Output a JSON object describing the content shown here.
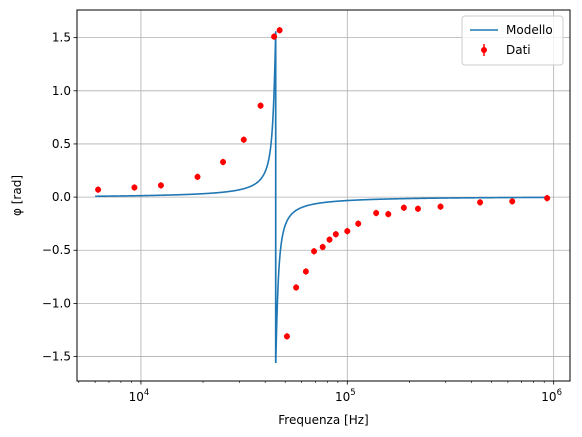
{
  "chart_data": {
    "type": "scatter",
    "xlabel": "Frequenza [Hz]",
    "ylabel": "φ [rad]",
    "xscale": "log",
    "xlim": [
      4900,
      1200000
    ],
    "ylim": [
      -1.73,
      1.76
    ],
    "grid": true,
    "legend_placement": "top-right",
    "x_ticks": [
      {
        "value": 10000,
        "base": "10",
        "exp": "4"
      },
      {
        "value": 100000,
        "base": "10",
        "exp": "5"
      },
      {
        "value": 1000000,
        "base": "10",
        "exp": "6"
      }
    ],
    "y_ticks": [
      {
        "value": 1.5,
        "label": "1.5"
      },
      {
        "value": 1.0,
        "label": "1.0"
      },
      {
        "value": 0.5,
        "label": "0.5"
      },
      {
        "value": 0.0,
        "label": "0.0"
      },
      {
        "value": -0.5,
        "label": "−0.5"
      },
      {
        "value": -1.0,
        "label": "−1.0"
      },
      {
        "value": -1.5,
        "label": "−1.5"
      }
    ],
    "series": [
      {
        "name": "Modello",
        "kind": "line",
        "color": "#1f77b4",
        "resonance_hz": 45000,
        "amplitude_rad": 1.56
      },
      {
        "name": "Dati",
        "kind": "errorbar",
        "color": "#ff0000",
        "points": [
          {
            "x": 6200,
            "y": 0.07,
            "err": 0.03
          },
          {
            "x": 9300,
            "y": 0.09,
            "err": 0.03
          },
          {
            "x": 12500,
            "y": 0.11,
            "err": 0.03
          },
          {
            "x": 18800,
            "y": 0.19,
            "err": 0.03
          },
          {
            "x": 25000,
            "y": 0.33,
            "err": 0.03
          },
          {
            "x": 31500,
            "y": 0.54,
            "err": 0.03
          },
          {
            "x": 38000,
            "y": 0.86,
            "err": 0.03
          },
          {
            "x": 44200,
            "y": 1.51,
            "err": 0.03
          },
          {
            "x": 47000,
            "y": 1.57,
            "err": 0.03
          },
          {
            "x": 51000,
            "y": -1.31,
            "err": 0.03
          },
          {
            "x": 56500,
            "y": -0.85,
            "err": 0.03
          },
          {
            "x": 63000,
            "y": -0.7,
            "err": 0.03
          },
          {
            "x": 69000,
            "y": -0.51,
            "err": 0.03
          },
          {
            "x": 76000,
            "y": -0.47,
            "err": 0.03
          },
          {
            "x": 82000,
            "y": -0.4,
            "err": 0.03
          },
          {
            "x": 88000,
            "y": -0.35,
            "err": 0.03
          },
          {
            "x": 100000,
            "y": -0.32,
            "err": 0.03
          },
          {
            "x": 113000,
            "y": -0.25,
            "err": 0.03
          },
          {
            "x": 138000,
            "y": -0.15,
            "err": 0.03
          },
          {
            "x": 158000,
            "y": -0.16,
            "err": 0.03
          },
          {
            "x": 188000,
            "y": -0.1,
            "err": 0.03
          },
          {
            "x": 220000,
            "y": -0.11,
            "err": 0.03
          },
          {
            "x": 283000,
            "y": -0.09,
            "err": 0.03
          },
          {
            "x": 440000,
            "y": -0.05,
            "err": 0.03
          },
          {
            "x": 630000,
            "y": -0.04,
            "err": 0.03
          },
          {
            "x": 930000,
            "y": -0.01,
            "err": 0.03
          }
        ]
      }
    ]
  }
}
